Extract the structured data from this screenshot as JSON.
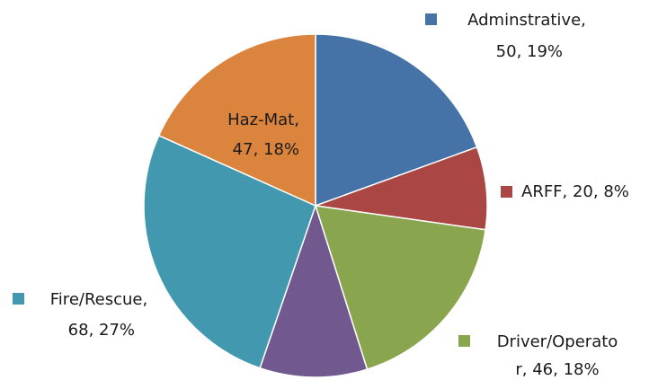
{
  "chart_data": {
    "type": "pie",
    "values": [
      50,
      20,
      46,
      26,
      68,
      47
    ],
    "value_labels": [
      "Adminstrative, 50, 19%",
      "ARFF, 20, 8%",
      "Driver/Operator, 46, 18%",
      null,
      "Fire/Rescue, 68, 27%",
      "Haz-Mat, 47, 18%"
    ],
    "colors": [
      "#4572a7",
      "#aa4643",
      "#89a54e",
      "#71588f",
      "#4198af",
      "#db843d"
    ]
  }
}
